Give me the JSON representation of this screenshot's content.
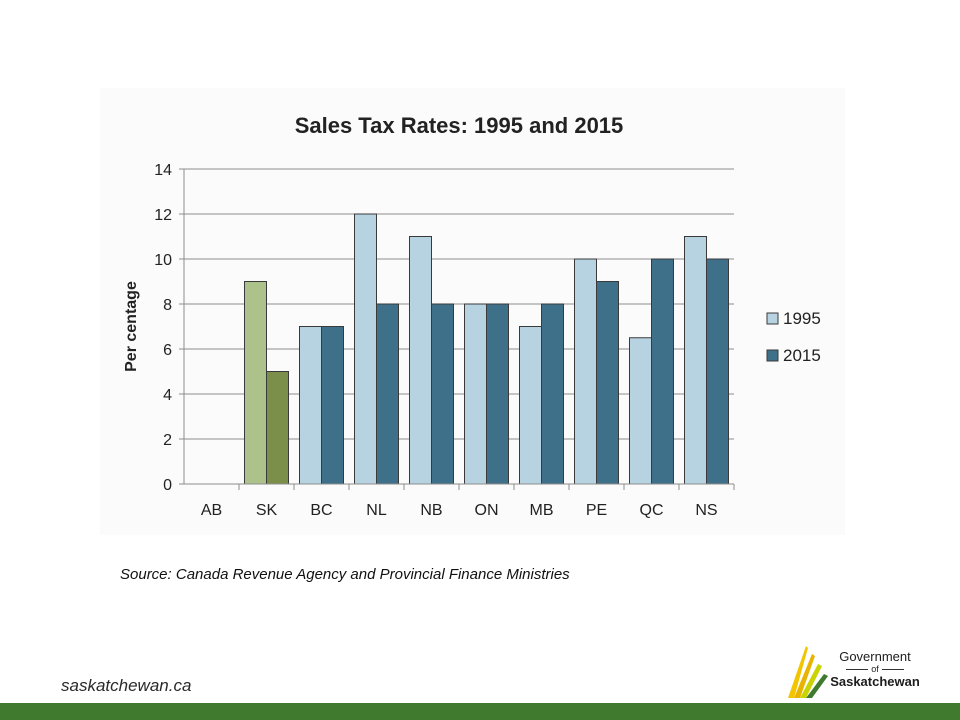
{
  "chart_data": {
    "type": "bar",
    "title": "Sales Tax Rates: 1995 and 2015",
    "xlabel": "",
    "ylabel": "Per centage",
    "ylim": [
      0,
      14
    ],
    "yticks": [
      0,
      2,
      4,
      6,
      8,
      10,
      12,
      14
    ],
    "categories": [
      "AB",
      "SK",
      "BC",
      "NL",
      "NB",
      "ON",
      "MB",
      "PE",
      "QC",
      "NS"
    ],
    "series": [
      {
        "name": "1995",
        "color": "#b7d3e2",
        "values": [
          0,
          9,
          7,
          12,
          11,
          8,
          7,
          10,
          6.5,
          11
        ]
      },
      {
        "name": "2015",
        "color": "#3e7089",
        "values": [
          0,
          5,
          7,
          8,
          8,
          8,
          8,
          9,
          10,
          10
        ]
      }
    ],
    "highlight": {
      "category": "SK",
      "colors": [
        "#acc28a",
        "#7b8f4a"
      ]
    },
    "grid": true,
    "legend": "right"
  },
  "source": "Source:  Canada Revenue Agency and Provincial Finance Ministries",
  "website": "saskatchewan.ca",
  "logo": {
    "line1": "Government",
    "line2": "of",
    "line3": "Saskatchewan"
  }
}
